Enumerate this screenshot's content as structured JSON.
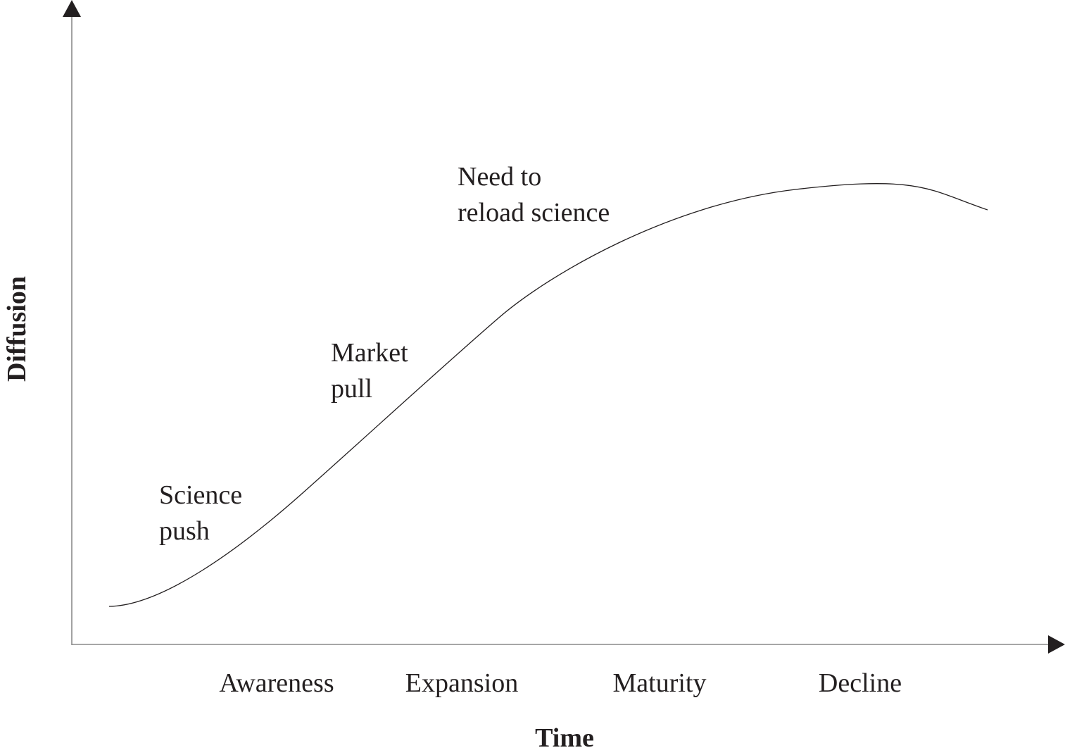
{
  "diagram": {
    "y_axis_label": "Diffusion",
    "x_axis_label": "Time",
    "stages": [
      "Awareness",
      "Expansion",
      "Maturity",
      "Decline"
    ],
    "annotations": {
      "science_push": [
        "Science",
        "push"
      ],
      "market_pull": [
        "Market",
        "pull"
      ],
      "reload_science": [
        "Need to",
        "reload science"
      ]
    }
  }
}
